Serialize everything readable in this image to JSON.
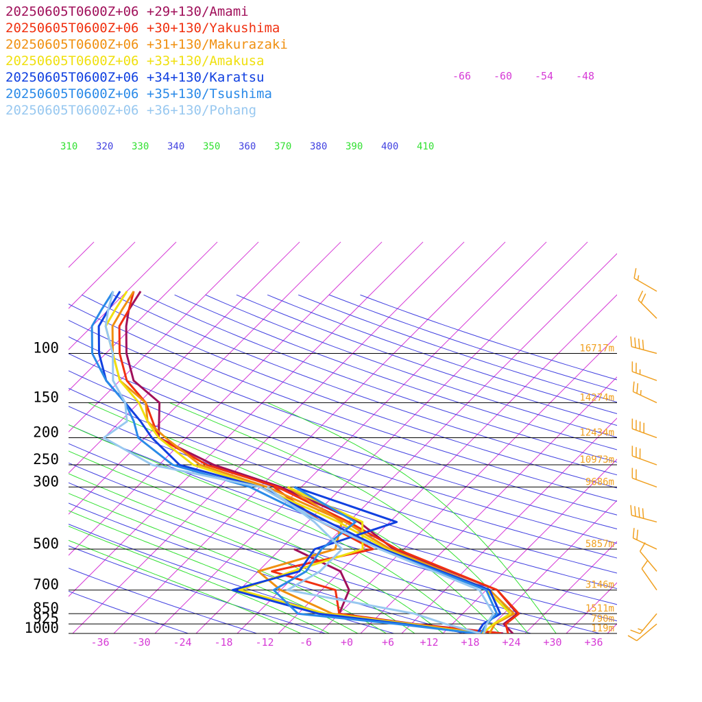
{
  "chart_data": {
    "type": "line",
    "chart_kind": "skew-T log-P sounding",
    "pressure_levels": [
      100,
      150,
      200,
      250,
      300,
      500,
      700,
      850,
      925,
      1000
    ],
    "pressure_labels": [
      "100",
      "150",
      "200",
      "250",
      "300",
      "500",
      "700",
      "850",
      "925",
      "1000"
    ],
    "height_labels": [
      "16717m",
      "14274m",
      "12434m",
      "10973m",
      "9686m",
      "5857m",
      "3146m",
      "1511m",
      "790m",
      "119m"
    ],
    "x_tick_labels": [
      "-36",
      "-30",
      "-24",
      "-18",
      "-12",
      "-6",
      "+0",
      "+6",
      "+12",
      "+18",
      "+24",
      "+30",
      "+36"
    ],
    "x_ticks": [
      -36,
      -30,
      -24,
      -18,
      -12,
      -6,
      0,
      6,
      12,
      18,
      24,
      30,
      36
    ],
    "upper_isotherm_labels": [
      "-66",
      "-60",
      "-54",
      "-48"
    ],
    "theta_labels": [
      "310",
      "320",
      "330",
      "340",
      "350",
      "360",
      "370",
      "380",
      "390",
      "400",
      "410"
    ],
    "xlim": [
      -40,
      40
    ],
    "ylim": [
      1000,
      100
    ],
    "y_scale": "log",
    "colors": {
      "isotherm": "#d63ad6",
      "dry_adiabat": "#4040e0",
      "moist_adiabat": "#30e030",
      "pressure_line": "#000000",
      "height_label": "#f0a020",
      "wind_barb": "#f0a020"
    },
    "series": [
      {
        "name": "20250605T0600Z+06 +29+130/Amami",
        "color": "#a0105a",
        "temperature": [
          [
            1000,
            24.2
          ],
          [
            925,
            21.5
          ],
          [
            850,
            22
          ],
          [
            700,
            15.6
          ],
          [
            500,
            -5.5
          ],
          [
            400,
            -14.5
          ],
          [
            300,
            -31
          ],
          [
            250,
            -44
          ],
          [
            200,
            -56
          ],
          [
            150,
            -61
          ],
          [
            125,
            -68
          ],
          [
            100,
            -73
          ],
          [
            80,
            -77
          ],
          [
            70,
            -79
          ],
          [
            60,
            -80
          ]
        ],
        "dewpoint": [
          [
            1000,
            22.8
          ],
          [
            925,
            8.5
          ],
          [
            850,
            -4
          ],
          [
            700,
            -6
          ],
          [
            600,
            -10
          ],
          [
            500,
            -20
          ]
        ]
      },
      {
        "name": "20250605T0600Z+06 +30+130/Yakushima",
        "color": "#f03010",
        "temperature": [
          [
            1000,
            23.5
          ],
          [
            925,
            21.8
          ],
          [
            850,
            22.2
          ],
          [
            700,
            15.6
          ],
          [
            500,
            -5
          ],
          [
            400,
            -16
          ],
          [
            300,
            -31.5
          ],
          [
            250,
            -45
          ],
          [
            200,
            -56
          ],
          [
            150,
            -63
          ],
          [
            125,
            -69
          ],
          [
            100,
            -74
          ],
          [
            80,
            -78
          ],
          [
            70,
            -79
          ],
          [
            60,
            -81
          ]
        ],
        "dewpoint": [
          [
            1000,
            22.5
          ],
          [
            925,
            8
          ],
          [
            850,
            -4
          ],
          [
            700,
            -8
          ],
          [
            600,
            -20
          ],
          [
            500,
            -8.5
          ],
          [
            400,
            -20
          ],
          [
            300,
            -32
          ]
        ]
      },
      {
        "name": "20250605T0600Z+06 +31+130/Makurazaki",
        "color": "#f09010",
        "temperature": [
          [
            1000,
            20.8
          ],
          [
            925,
            20.2
          ],
          [
            850,
            21.5
          ],
          [
            700,
            14.5
          ],
          [
            500,
            -6
          ],
          [
            400,
            -16.5
          ],
          [
            300,
            -33
          ],
          [
            250,
            -46
          ],
          [
            200,
            -55
          ],
          [
            175,
            -60
          ],
          [
            150,
            -63
          ],
          [
            125,
            -70
          ],
          [
            100,
            -75
          ],
          [
            80,
            -79
          ],
          [
            70,
            -80
          ],
          [
            60,
            -81
          ]
        ],
        "dewpoint": [
          [
            1000,
            20
          ],
          [
            925,
            8
          ],
          [
            850,
            -5
          ],
          [
            700,
            -16
          ],
          [
            600,
            -22
          ],
          [
            500,
            -14
          ],
          [
            400,
            -17
          ],
          [
            300,
            -30
          ]
        ]
      },
      {
        "name": "20250605T0600Z+06 +33+130/Amakusa",
        "color": "#f0e010",
        "temperature": [
          [
            1000,
            19.8
          ],
          [
            925,
            20
          ],
          [
            850,
            21
          ],
          [
            700,
            14
          ],
          [
            500,
            -6.5
          ],
          [
            400,
            -17.5
          ],
          [
            300,
            -34
          ],
          [
            250,
            -47
          ],
          [
            200,
            -56
          ],
          [
            175,
            -60
          ],
          [
            150,
            -64
          ],
          [
            125,
            -70
          ],
          [
            100,
            -75
          ],
          [
            80,
            -80
          ],
          [
            70,
            -81
          ],
          [
            60,
            -82
          ]
        ],
        "dewpoint": [
          [
            1000,
            19
          ],
          [
            925,
            8
          ],
          [
            850,
            -6
          ],
          [
            700,
            -22
          ],
          [
            600,
            -17
          ],
          [
            500,
            -10
          ],
          [
            400,
            -14
          ],
          [
            300,
            -30
          ]
        ]
      },
      {
        "name": "20250605T0600Z+06 +34+130/Karatsu",
        "color": "#1040e0",
        "temperature": [
          [
            1000,
            19
          ],
          [
            925,
            18.5
          ],
          [
            850,
            19.5
          ],
          [
            700,
            14.5
          ],
          [
            500,
            -7
          ],
          [
            400,
            -19
          ],
          [
            300,
            -34
          ],
          [
            250,
            -49
          ],
          [
            200,
            -57
          ],
          [
            175,
            -61
          ],
          [
            150,
            -66
          ],
          [
            125,
            -72
          ],
          [
            100,
            -77
          ],
          [
            80,
            -81
          ],
          [
            70,
            -82
          ],
          [
            60,
            -83
          ]
        ],
        "dewpoint": [
          [
            1000,
            18.5
          ],
          [
            925,
            7
          ],
          [
            850,
            -7
          ],
          [
            700,
            -23
          ],
          [
            600,
            -16
          ],
          [
            500,
            -17
          ],
          [
            400,
            -9
          ],
          [
            300,
            -29
          ]
        ]
      },
      {
        "name": "20250605T0600Z+06 +35+130/Tsushima",
        "color": "#2a8ae8",
        "temperature": [
          [
            1000,
            19.5
          ],
          [
            925,
            19
          ],
          [
            850,
            19
          ],
          [
            700,
            14
          ],
          [
            500,
            -7.5
          ],
          [
            400,
            -20
          ],
          [
            300,
            -35.5
          ],
          [
            250,
            -50
          ],
          [
            200,
            -59
          ],
          [
            175,
            -62
          ],
          [
            150,
            -66
          ],
          [
            125,
            -72
          ],
          [
            100,
            -78
          ],
          [
            80,
            -82
          ],
          [
            70,
            -83
          ],
          [
            60,
            -84
          ]
        ],
        "dewpoint": [
          [
            1000,
            19
          ],
          [
            925,
            6
          ],
          [
            850,
            -10
          ],
          [
            700,
            -17
          ],
          [
            600,
            -15
          ],
          [
            500,
            -16
          ],
          [
            400,
            -15
          ],
          [
            300,
            -29
          ]
        ]
      },
      {
        "name": "20250605T0600Z+06 +36+130/Pohang",
        "color": "#98c8f0",
        "temperature": [
          [
            1000,
            20
          ],
          [
            925,
            19
          ],
          [
            850,
            18.5
          ],
          [
            700,
            13
          ],
          [
            500,
            -7.5
          ],
          [
            400,
            -20
          ],
          [
            300,
            -34
          ],
          [
            250,
            -53
          ],
          [
            200,
            -64
          ],
          [
            175,
            -63
          ],
          [
            150,
            -66
          ],
          [
            125,
            -71
          ],
          [
            100,
            -75
          ],
          [
            80,
            -80
          ],
          [
            70,
            -82
          ],
          [
            60,
            -84
          ]
        ],
        "dewpoint": [
          [
            1000,
            19.5
          ],
          [
            925,
            13
          ],
          [
            850,
            7
          ],
          [
            700,
            -15
          ],
          [
            600,
            -13
          ],
          [
            500,
            -13
          ],
          [
            400,
            -21
          ],
          [
            300,
            -33
          ]
        ]
      }
    ],
    "wind_barbs": [
      {
        "p": 60,
        "speed": 15,
        "dir": 300
      },
      {
        "p": 75,
        "speed": 20,
        "dir": 315
      },
      {
        "p": 100,
        "speed": 40,
        "dir": 285
      },
      {
        "p": 125,
        "speed": 25,
        "dir": 290
      },
      {
        "p": 150,
        "speed": 25,
        "dir": 295
      },
      {
        "p": 200,
        "speed": 40,
        "dir": 290
      },
      {
        "p": 250,
        "speed": 30,
        "dir": 290
      },
      {
        "p": 300,
        "speed": 20,
        "dir": 290
      },
      {
        "p": 400,
        "speed": 40,
        "dir": 285
      },
      {
        "p": 500,
        "speed": 20,
        "dir": 295
      },
      {
        "p": 600,
        "speed": 10,
        "dir": 320
      },
      {
        "p": 700,
        "speed": 10,
        "dir": 325
      },
      {
        "p": 850,
        "speed": 15,
        "dir": 220
      },
      {
        "p": 925,
        "speed": 10,
        "dir": 230
      }
    ]
  }
}
